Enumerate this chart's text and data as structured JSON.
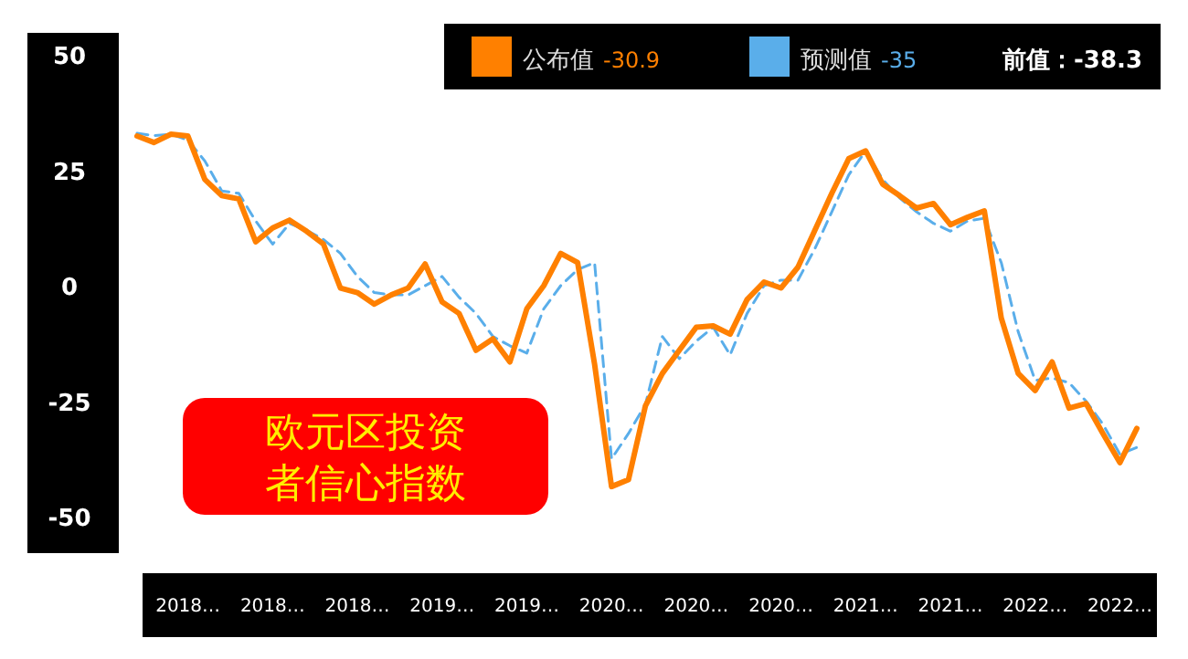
{
  "chart_data": {
    "type": "line",
    "title": "欧元区投资者信心指数",
    "categories": [
      null,
      null,
      null,
      "2018…",
      null,
      null,
      null,
      null,
      "2018…",
      null,
      null,
      null,
      null,
      "2018…",
      null,
      null,
      null,
      null,
      "2019…",
      null,
      null,
      null,
      null,
      "2019…",
      null,
      null,
      null,
      null,
      "2020…",
      null,
      null,
      null,
      null,
      "2020…",
      null,
      null,
      null,
      null,
      "2020…",
      null,
      null,
      null,
      null,
      "2021…",
      null,
      null,
      null,
      null,
      "2021…",
      null,
      null,
      null,
      null,
      "2022…",
      null,
      null,
      null,
      null,
      "2022…",
      null
    ],
    "series": [
      {
        "name": "公布值",
        "color": "#ff8000",
        "line_style": "solid",
        "values": [
          32.4,
          31,
          32.8,
          32.4,
          23,
          19.5,
          18.8,
          9.5,
          12.5,
          14.2,
          11.8,
          9,
          -0.5,
          -1.5,
          -4,
          -2,
          -0.5,
          4.7,
          -3.5,
          -6,
          -14,
          -11.5,
          -16.5,
          -5,
          0,
          7,
          5,
          -17,
          -43.5,
          -42,
          -26,
          -19,
          -14,
          -9,
          -8.7,
          -10.5,
          -3,
          0.8,
          -0.5,
          4,
          12,
          20,
          27.5,
          29.2,
          22,
          19.5,
          16.8,
          17.8,
          13.2,
          14.8,
          16.2,
          -7,
          -19,
          -22.7,
          -16.5,
          -26.5,
          -25.5,
          -32,
          -38.3,
          -30.9
        ]
      },
      {
        "name": "预测值",
        "color": "#5aaeea",
        "line_style": "dashed",
        "values": [
          33,
          32.5,
          32.8,
          31.5,
          27,
          20.5,
          20,
          14,
          9,
          13.5,
          12,
          10,
          7,
          2,
          -1.5,
          -2,
          -2,
          0,
          2,
          -2.5,
          -6,
          -11,
          -13,
          -14.6,
          -5,
          0,
          3.5,
          5,
          -37.5,
          -32,
          -25.7,
          -11,
          -15.8,
          -12,
          -9,
          -15,
          -6,
          0,
          1.2,
          1.2,
          8,
          16,
          24,
          29.2,
          23,
          19,
          16,
          13.5,
          11.8,
          14,
          14.6,
          5,
          -10,
          -20.5,
          -20,
          -21,
          -25,
          -30,
          -36.5,
          -35
        ]
      }
    ],
    "ylim": [
      -50,
      50
    ],
    "yticks": [
      -50,
      -25,
      0,
      25,
      50
    ],
    "legend": "top",
    "annotations": [
      "-30.9",
      "-35",
      "前值：-38.3"
    ]
  }
}
